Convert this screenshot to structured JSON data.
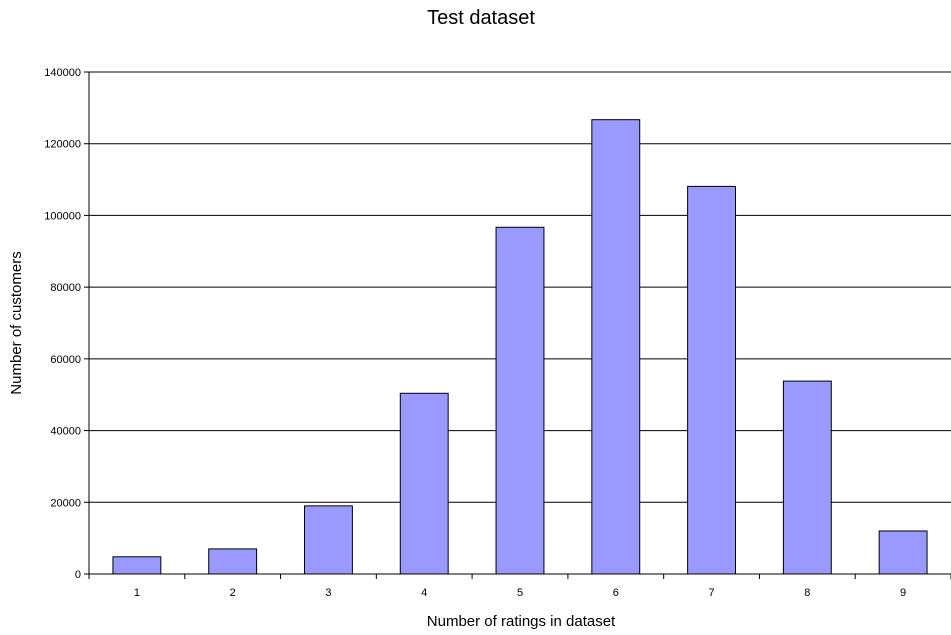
{
  "chart_data": {
    "type": "bar",
    "title": "Test dataset",
    "xlabel": "Number of ratings in dataset",
    "ylabel": "Number of customers",
    "categories": [
      "1",
      "2",
      "3",
      "4",
      "5",
      "6",
      "7",
      "8",
      "9"
    ],
    "values": [
      4800,
      7000,
      19000,
      50400,
      96700,
      126700,
      108100,
      53800,
      12000
    ],
    "ylim": [
      0,
      140000
    ],
    "yticks": [
      0,
      20000,
      40000,
      60000,
      80000,
      100000,
      120000,
      140000
    ],
    "ytick_labels": [
      "0",
      "20000",
      "40000",
      "60000",
      "80000",
      "100000",
      "120000",
      "140000"
    ],
    "grid": "horizontal major gridlines",
    "legend": "none",
    "colors": {
      "bar_fill": "#9999ff",
      "bar_stroke": "#000000",
      "gridline": "#000000",
      "background": "#ffffff"
    }
  }
}
